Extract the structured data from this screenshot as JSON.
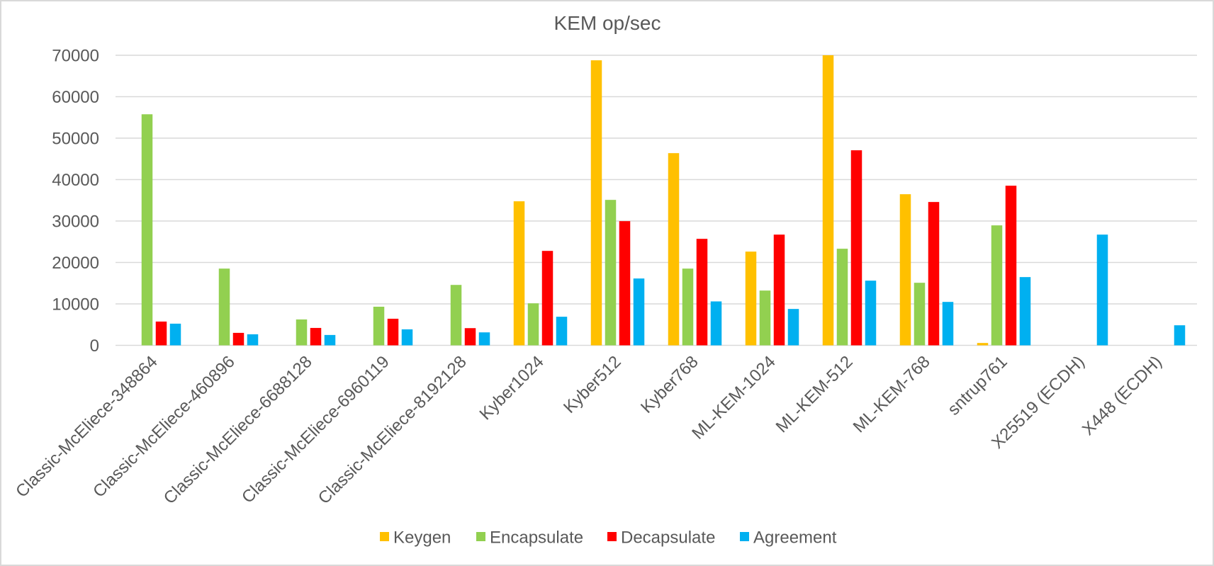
{
  "chart_data": {
    "type": "bar",
    "title": "KEM op/sec",
    "xlabel": "",
    "ylabel": "",
    "ylim": [
      0,
      70000
    ],
    "yticks": [
      0,
      10000,
      20000,
      30000,
      40000,
      50000,
      60000,
      70000
    ],
    "grid": true,
    "legend_position": "bottom",
    "categories": [
      "Classic-McEliece-348864",
      "Classic-McEliece-460896",
      "Classic-McEliece-6688128",
      "Classic-McEliece-6960119",
      "Classic-McEliece-8192128",
      "Kyber1024",
      "Kyber512",
      "Kyber768",
      "ML-KEM-1024",
      "ML-KEM-512",
      "ML-KEM-768",
      "sntrup761",
      "X25519 (ECDH)",
      "X448 (ECDH)"
    ],
    "series": [
      {
        "name": "Keygen",
        "color": "#ffc000",
        "values": [
          null,
          null,
          null,
          null,
          null,
          34760,
          68780,
          46380,
          22620,
          70000,
          36470,
          570,
          null,
          null
        ]
      },
      {
        "name": "Encapsulate",
        "color": "#92d050",
        "values": [
          55760,
          18520,
          6250,
          9320,
          14580,
          10140,
          35100,
          18520,
          13220,
          23310,
          15100,
          28950,
          null,
          null
        ]
      },
      {
        "name": "Decapsulate",
        "color": "#ff0000",
        "values": [
          5740,
          3010,
          4200,
          6420,
          4150,
          22790,
          29970,
          25700,
          26720,
          47070,
          34590,
          38520,
          null,
          null
        ]
      },
      {
        "name": "Agreement",
        "color": "#00b0f0",
        "values": [
          5230,
          2670,
          2500,
          3860,
          3130,
          6900,
          16130,
          10600,
          8780,
          15610,
          10480,
          16470,
          26720,
          4840
        ]
      }
    ]
  }
}
